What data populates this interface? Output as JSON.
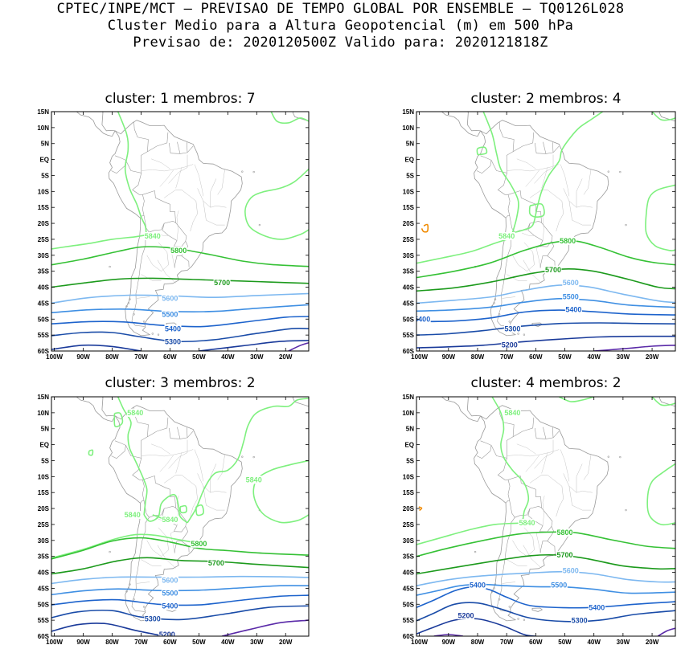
{
  "header": {
    "line1": "CPTEC/INPE/MCT — PREVISAO DE TEMPO GLOBAL POR ENSEMBLE — TQ0126L028",
    "line2": "Cluster Medio para a Altura Geopotencial (m) em 500 hPa",
    "line3": "Previsao de: 2020120500Z   Valido para: 2020121818Z"
  },
  "axes": {
    "lat_labels": [
      "15N",
      "10N",
      "5N",
      "EQ",
      "5S",
      "10S",
      "15S",
      "20S",
      "25S",
      "30S",
      "35S",
      "40S",
      "45S",
      "50S",
      "55S",
      "60S"
    ],
    "lon_labels": [
      "100W",
      "90W",
      "80W",
      "70W",
      "60W",
      "50W",
      "40W",
      "30W",
      "20W"
    ]
  },
  "colors": {
    "c5840": "#7ef07e",
    "c5800": "#35c135",
    "c5700": "#1c9a1c",
    "c5600": "#7db8f0",
    "c5500": "#3f8fe3",
    "c5400": "#1d63cc",
    "c5300": "#1a4ca8",
    "c5200": "#1a3a9a",
    "c5100": "#5a2aa8",
    "coast": "#9a9a9a",
    "orange": "#f08a00"
  },
  "panels": [
    {
      "title": "cluster: 1   membros: 7",
      "labels": [
        {
          "text": "5840",
          "lon": -66,
          "lat": -24
        },
        {
          "text": "5800",
          "lon": -57,
          "lat": -28.5
        },
        {
          "text": "5700",
          "lon": -42,
          "lat": -38.5
        },
        {
          "text": "5600",
          "lon": -60,
          "lat": -43.5
        },
        {
          "text": "5500",
          "lon": -60,
          "lat": -48.5
        },
        {
          "text": "5400",
          "lon": -59,
          "lat": -53
        },
        {
          "text": "5300",
          "lon": -59,
          "lat": -57
        }
      ]
    },
    {
      "title": "cluster: 2   membros: 4",
      "labels": [
        {
          "text": "5840",
          "lon": -70,
          "lat": -24
        },
        {
          "text": "5800",
          "lon": -49,
          "lat": -25.5
        },
        {
          "text": "5700",
          "lon": -54,
          "lat": -34.5
        },
        {
          "text": "5600",
          "lon": -48,
          "lat": -38.5
        },
        {
          "text": "5500",
          "lon": -48,
          "lat": -43
        },
        {
          "text": "5400",
          "lon": -47,
          "lat": -47
        },
        {
          "text": "5400",
          "lon": -99,
          "lat": -50
        },
        {
          "text": "5300",
          "lon": -68,
          "lat": -53
        },
        {
          "text": "5200",
          "lon": -69,
          "lat": -58
        }
      ]
    },
    {
      "title": "cluster: 3   membros: 2",
      "labels": [
        {
          "text": "5840",
          "lon": -72,
          "lat": 10
        },
        {
          "text": "5840",
          "lon": -31,
          "lat": -11
        },
        {
          "text": "5840",
          "lon": -73,
          "lat": -22
        },
        {
          "text": "5840",
          "lon": -60,
          "lat": -23.5
        },
        {
          "text": "5800",
          "lon": -50,
          "lat": -31
        },
        {
          "text": "5700",
          "lon": -44,
          "lat": -37
        },
        {
          "text": "5600",
          "lon": -60,
          "lat": -42.5
        },
        {
          "text": "5500",
          "lon": -60,
          "lat": -46.5
        },
        {
          "text": "5400",
          "lon": -60,
          "lat": -50.5
        },
        {
          "text": "5300",
          "lon": -66,
          "lat": -54.5
        },
        {
          "text": "5200",
          "lon": -61,
          "lat": -59.5
        }
      ]
    },
    {
      "title": "cluster: 4   membros: 2",
      "labels": [
        {
          "text": "5840",
          "lon": -68,
          "lat": 10
        },
        {
          "text": "5840",
          "lon": -63,
          "lat": -24.5
        },
        {
          "text": "5800",
          "lon": -50,
          "lat": -27.5
        },
        {
          "text": "5700",
          "lon": -50,
          "lat": -34.5
        },
        {
          "text": "5600",
          "lon": -48,
          "lat": -39.5
        },
        {
          "text": "5500",
          "lon": -52,
          "lat": -44
        },
        {
          "text": "5400",
          "lon": -80,
          "lat": -44
        },
        {
          "text": "5400",
          "lon": -39,
          "lat": -51
        },
        {
          "text": "5300",
          "lon": -45,
          "lat": -55
        },
        {
          "text": "5200",
          "lon": -84,
          "lat": -53.5
        }
      ]
    }
  ]
}
